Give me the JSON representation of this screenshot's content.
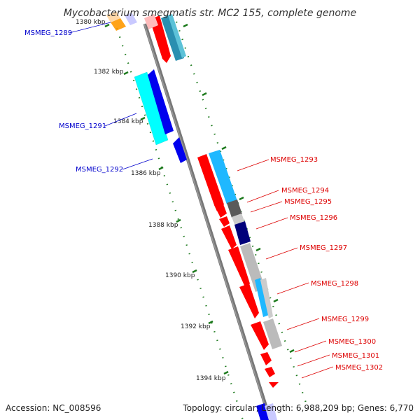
{
  "title": "Mycobacterium smegmatis str. MC2 155, complete genome",
  "footer": {
    "accession": "Accession: NC_008596",
    "topology": "Topology: circular; Length: 6,988,209 bp; Genes: 6,770"
  },
  "colors": {
    "backbone": "#7a7a7a",
    "tick": "#1d7a1d",
    "forward_label": "#0000cc",
    "reverse_label": "#dd0000",
    "red_gene": "#ff0000",
    "blue_gene": "#0000ee",
    "cyan_gene": "#00ffff",
    "sky_gene": "#1fb8ff",
    "navy_gene": "#00007a",
    "grey_gene": "#bbbbbb",
    "dark_grey_gene": "#5a5a5a",
    "orange_gene": "#ff9900"
  },
  "ticks": [
    {
      "label": "1380 kbp"
    },
    {
      "label": "1382 kbp"
    },
    {
      "label": "1384 kbp"
    },
    {
      "label": "1386 kbp"
    },
    {
      "label": "1388 kbp"
    },
    {
      "label": "1390 kbp"
    },
    {
      "label": "1392 kbp"
    },
    {
      "label": "1394 kbp"
    }
  ],
  "genes_forward": [
    {
      "label": "MSMEG_1289"
    },
    {
      "label": "MSMEG_1291"
    },
    {
      "label": "MSMEG_1292"
    }
  ],
  "genes_reverse": [
    {
      "label": "MSMEG_1293"
    },
    {
      "label": "MSMEG_1294"
    },
    {
      "label": "MSMEG_1295"
    },
    {
      "label": "MSMEG_1296"
    },
    {
      "label": "MSMEG_1297"
    },
    {
      "label": "MSMEG_1298"
    },
    {
      "label": "MSMEG_1299"
    },
    {
      "label": "MSMEG_1300"
    },
    {
      "label": "MSMEG_1301"
    },
    {
      "label": "MSMEG_1302"
    }
  ]
}
